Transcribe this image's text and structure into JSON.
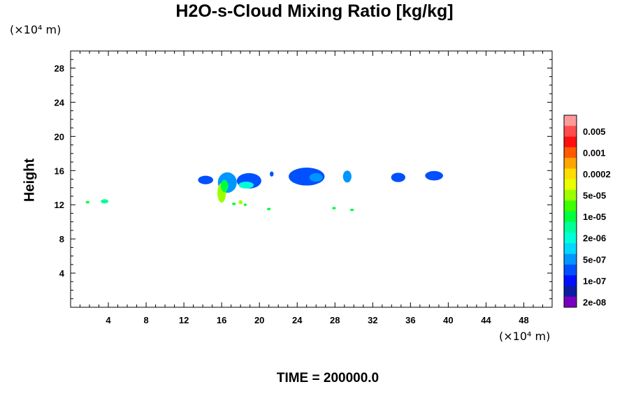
{
  "chart_data": {
    "type": "heatmap",
    "title": "H2O-s-Cloud Mixing Ratio [kg/kg]",
    "xlabel": "",
    "ylabel": "Height",
    "x_unit": "(×10⁴ m)",
    "y_unit": "(×10⁴ m)",
    "xlim": [
      0,
      51
    ],
    "ylim": [
      0,
      30
    ],
    "x_ticks": [
      4,
      8,
      12,
      16,
      20,
      24,
      28,
      32,
      36,
      40,
      44,
      48
    ],
    "y_ticks": [
      4,
      8,
      12,
      16,
      20,
      24,
      28
    ],
    "colorbar": {
      "labels": [
        "0.005",
        "0.001",
        "0.0002",
        "5e-05",
        "1e-05",
        "2e-06",
        "5e-07",
        "1e-07",
        "2e-08"
      ],
      "colors": [
        "#ff9a9a",
        "#ff4d4d",
        "#ff1010",
        "#ff5a00",
        "#ffa500",
        "#ffdd00",
        "#e8ff00",
        "#9cff00",
        "#3cff00",
        "#00ff40",
        "#00ff9a",
        "#00ffd8",
        "#00d8ff",
        "#0096ff",
        "#0050ff",
        "#0010ff",
        "#0c1ca0",
        "#7a00c0"
      ]
    },
    "features": [
      {
        "x": 1.8,
        "y": 12.3,
        "w": 0.4,
        "h": 0.3,
        "color": "#00ff40"
      },
      {
        "x": 3.6,
        "y": 12.4,
        "w": 0.8,
        "h": 0.5,
        "color": "#00ff9a"
      },
      {
        "x": 14.3,
        "y": 14.9,
        "w": 1.6,
        "h": 1.0,
        "color": "#0050ff"
      },
      {
        "x": 16.6,
        "y": 14.6,
        "w": 2.0,
        "h": 2.4,
        "color": "#0096ff"
      },
      {
        "x": 16.0,
        "y": 13.4,
        "w": 0.9,
        "h": 2.3,
        "color": "#9cff00"
      },
      {
        "x": 16.3,
        "y": 14.2,
        "w": 0.8,
        "h": 1.4,
        "color": "#00ff40"
      },
      {
        "x": 18.9,
        "y": 14.8,
        "w": 2.6,
        "h": 1.8,
        "color": "#0050ff"
      },
      {
        "x": 18.6,
        "y": 14.3,
        "w": 1.6,
        "h": 0.8,
        "color": "#00ffd8"
      },
      {
        "x": 21.3,
        "y": 15.6,
        "w": 0.4,
        "h": 0.6,
        "color": "#0050ff"
      },
      {
        "x": 25.0,
        "y": 15.3,
        "w": 3.8,
        "h": 2.1,
        "color": "#0050ff"
      },
      {
        "x": 26.0,
        "y": 15.2,
        "w": 1.4,
        "h": 1.0,
        "color": "#0096ff"
      },
      {
        "x": 29.3,
        "y": 15.3,
        "w": 0.9,
        "h": 1.4,
        "color": "#0096ff"
      },
      {
        "x": 34.7,
        "y": 15.2,
        "w": 1.5,
        "h": 1.1,
        "color": "#0050ff"
      },
      {
        "x": 38.5,
        "y": 15.4,
        "w": 1.9,
        "h": 1.1,
        "color": "#0050ff"
      },
      {
        "x": 18.0,
        "y": 12.3,
        "w": 0.4,
        "h": 0.5,
        "color": "#9cff00"
      },
      {
        "x": 17.3,
        "y": 12.1,
        "w": 0.4,
        "h": 0.3,
        "color": "#00ff40"
      },
      {
        "x": 18.5,
        "y": 12.0,
        "w": 0.3,
        "h": 0.3,
        "color": "#00ff40"
      },
      {
        "x": 21.0,
        "y": 11.5,
        "w": 0.4,
        "h": 0.3,
        "color": "#00ff40"
      },
      {
        "x": 27.9,
        "y": 11.6,
        "w": 0.4,
        "h": 0.3,
        "color": "#00ff40"
      },
      {
        "x": 29.8,
        "y": 11.4,
        "w": 0.4,
        "h": 0.3,
        "color": "#00ff40"
      }
    ]
  },
  "footer": {
    "time_label": "TIME = 200000.0"
  }
}
